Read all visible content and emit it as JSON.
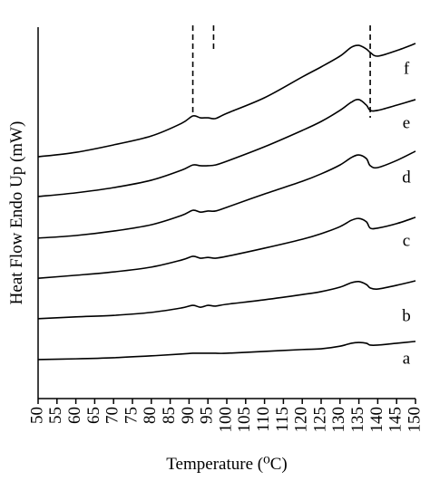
{
  "chart_data": {
    "type": "line",
    "xlabel": "Temperature (⁰C)",
    "ylabel": "Heat Flow Endo Up (mW)",
    "x": [
      50,
      60,
      70,
      80,
      88,
      91,
      93,
      95,
      97,
      100,
      110,
      120,
      125,
      130,
      133,
      135,
      137,
      138,
      140,
      145,
      150
    ],
    "series": [
      {
        "name": "a",
        "color": "#000000",
        "values": [
          10.5,
          10.7,
          11,
          11.5,
          12,
          12.2,
          12.2,
          12.2,
          12.2,
          12.2,
          12.7,
          13.2,
          13.4,
          14.1,
          14.9,
          15.1,
          14.9,
          14.4,
          14.4,
          14.9,
          15.4
        ]
      },
      {
        "name": "b",
        "color": "#000000",
        "values": [
          21.5,
          22,
          22.4,
          23.2,
          24.4,
          25.1,
          24.6,
          25.1,
          24.9,
          25.4,
          26.6,
          28,
          28.8,
          30,
          31.2,
          31.5,
          30.7,
          29.8,
          29.5,
          30.5,
          31.7
        ]
      },
      {
        "name": "c",
        "color": "#000000",
        "values": [
          32.4,
          33.2,
          34.1,
          35.4,
          37.3,
          38.3,
          37.8,
          38,
          37.8,
          38.3,
          40.5,
          42.9,
          44.4,
          46.3,
          48,
          48.5,
          47.6,
          45.9,
          45.9,
          47.1,
          48.8
        ]
      },
      {
        "name": "d",
        "color": "#000000",
        "values": [
          43.2,
          43.9,
          45.1,
          46.8,
          49.3,
          50.7,
          50.2,
          50.5,
          50.5,
          51.5,
          55.1,
          58.5,
          60.5,
          62.9,
          64.9,
          65.6,
          64.6,
          62.7,
          62.2,
          64.1,
          66.6
        ]
      },
      {
        "name": "e",
        "color": "#000000",
        "values": [
          54.4,
          55.4,
          56.8,
          58.8,
          61.5,
          62.9,
          62.7,
          62.7,
          62.9,
          63.9,
          67.8,
          72.2,
          74.6,
          77.6,
          79.8,
          80.5,
          79,
          77.6,
          77.6,
          79,
          80.5
        ]
      },
      {
        "name": "f",
        "color": "#000000",
        "values": [
          65.1,
          66.3,
          68.3,
          70.7,
          74.1,
          76.1,
          75.6,
          75.6,
          75.4,
          76.8,
          81,
          86.6,
          89.3,
          92.2,
          94.6,
          95.1,
          94.1,
          93.2,
          92.2,
          93.7,
          95.6
        ]
      }
    ],
    "xlim": [
      50,
      150
    ],
    "xticks": [
      50,
      55,
      60,
      65,
      70,
      75,
      80,
      85,
      90,
      95,
      100,
      105,
      110,
      115,
      120,
      125,
      130,
      135,
      140,
      145,
      150
    ],
    "ylim": [
      0,
      100
    ],
    "vlines": [
      91,
      138
    ],
    "short_vlines": [
      96.5
    ]
  }
}
